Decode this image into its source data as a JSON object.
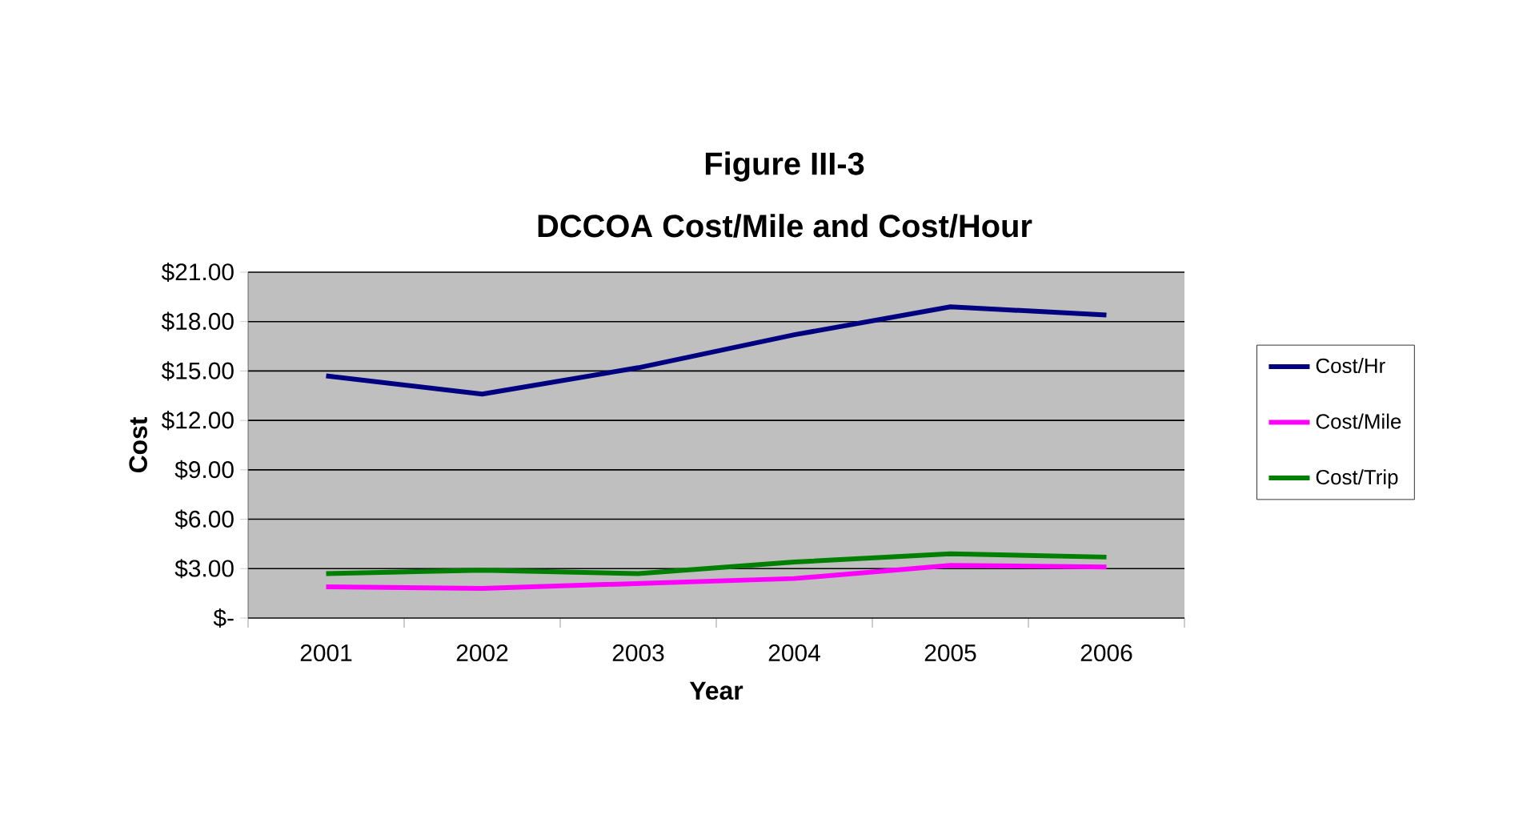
{
  "chart_data": {
    "type": "line",
    "title": "Figure III-3",
    "subtitle": "DCCOA Cost/Mile and Cost/Hour",
    "xlabel": "Year",
    "ylabel": "Cost",
    "categories": [
      "2001",
      "2002",
      "2003",
      "2004",
      "2005",
      "2006"
    ],
    "series": [
      {
        "name": "Cost/Hr",
        "color": "#000080",
        "values": [
          14.7,
          13.6,
          15.2,
          17.2,
          18.9,
          18.4
        ]
      },
      {
        "name": "Cost/Mile",
        "color": "#ff00ff",
        "values": [
          1.9,
          1.8,
          2.1,
          2.4,
          3.2,
          3.1
        ]
      },
      {
        "name": "Cost/Trip",
        "color": "#008000",
        "values": [
          2.7,
          2.9,
          2.7,
          3.4,
          3.9,
          3.7
        ]
      }
    ],
    "ylim": [
      0,
      21
    ],
    "yticks": [
      {
        "value": 0,
        "label": "$-"
      },
      {
        "value": 3,
        "label": "$3.00"
      },
      {
        "value": 6,
        "label": "$6.00"
      },
      {
        "value": 9,
        "label": "$9.00"
      },
      {
        "value": 12,
        "label": "$12.00"
      },
      {
        "value": 15,
        "label": "$15.00"
      },
      {
        "value": 18,
        "label": "$18.00"
      },
      {
        "value": 21,
        "label": "$21.00"
      }
    ],
    "grid": "y",
    "legend": "right",
    "marker": "none",
    "line_style": "solid"
  }
}
